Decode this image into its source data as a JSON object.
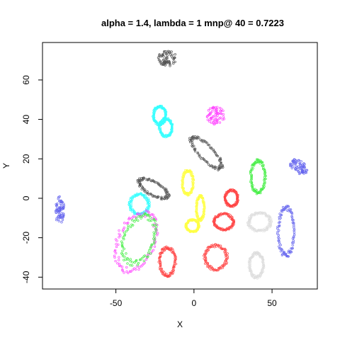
{
  "chart_data": {
    "type": "scatter",
    "title": "alpha = 1.4, lambda = 1 mnp@ 40 = 0.7223",
    "xlabel": "X",
    "ylabel": "Y",
    "xlim": [
      -97,
      79
    ],
    "ylim": [
      -46,
      79
    ],
    "xticks": [
      -50,
      0,
      50
    ],
    "yticks": [
      -40,
      -20,
      0,
      20,
      40,
      60
    ],
    "xtick_labels": [
      "-50",
      "0",
      "50"
    ],
    "ytick_labels": [
      "-40",
      "-20",
      "0",
      "20",
      "40",
      "60"
    ],
    "grid": false,
    "legend": "none",
    "marker": "open-circle",
    "clusters": [
      {
        "color": "#555555",
        "kind": "blob",
        "cx": -17,
        "cy": 71,
        "rx": 6,
        "ry": 4
      },
      {
        "color": "#ff44ff",
        "kind": "blob",
        "cx": 14,
        "cy": 42,
        "rx": 6,
        "ry": 4.5
      },
      {
        "color": "#33ffff",
        "kind": "ring",
        "cx": -22,
        "cy": 42,
        "rx": 4,
        "ry": 4.5
      },
      {
        "color": "#33ffff",
        "kind": "ring",
        "cx": -18,
        "cy": 36,
        "rx": 4,
        "ry": 4.5
      },
      {
        "color": "#555555",
        "kind": "ring",
        "cx": 8,
        "cy": 23,
        "rx": 12,
        "ry": 4,
        "rot": -38
      },
      {
        "color": "#44ee44",
        "kind": "ring",
        "cx": 41,
        "cy": 11,
        "rx": 4.5,
        "ry": 8
      },
      {
        "color": "#6666ee",
        "kind": "blob",
        "cx": 67,
        "cy": 16,
        "rx": 6,
        "ry": 3.5,
        "rot": -25
      },
      {
        "color": "#6666ee",
        "kind": "blob",
        "cx": -86,
        "cy": -6,
        "rx": 3,
        "ry": 7
      },
      {
        "color": "#ffff44",
        "kind": "ring",
        "cx": -4,
        "cy": 8,
        "rx": 3.5,
        "ry": 6
      },
      {
        "color": "#555555",
        "kind": "ring",
        "cx": -26,
        "cy": 5,
        "rx": 10,
        "ry": 3.5,
        "rot": -22
      },
      {
        "color": "#33ffff",
        "kind": "ring",
        "cx": -35,
        "cy": -3,
        "rx": 6,
        "ry": 5
      },
      {
        "color": "#ff44ff",
        "kind": "ring",
        "cx": -37,
        "cy": -22,
        "rx": 11,
        "ry": 16,
        "rot": -35
      },
      {
        "color": "#44ee44",
        "kind": "ring",
        "cx": -35,
        "cy": -21,
        "rx": 9,
        "ry": 13,
        "rot": -35
      },
      {
        "color": "#ffff44",
        "kind": "ring",
        "cx": 4,
        "cy": -5,
        "rx": 2.5,
        "ry": 6
      },
      {
        "color": "#ffff44",
        "kind": "ring",
        "cx": -1,
        "cy": -14,
        "rx": 4,
        "ry": 3
      },
      {
        "color": "#ff4444",
        "kind": "ring",
        "cx": 24,
        "cy": 0,
        "rx": 4,
        "ry": 4
      },
      {
        "color": "#ff4444",
        "kind": "ring",
        "cx": 19,
        "cy": -12,
        "rx": 6,
        "ry": 4
      },
      {
        "color": "#ff4444",
        "kind": "ring",
        "cx": -17,
        "cy": -32,
        "rx": 5,
        "ry": 7
      },
      {
        "color": "#ff4444",
        "kind": "ring",
        "cx": 14,
        "cy": -30,
        "rx": 7,
        "ry": 6
      },
      {
        "color": "#dddddd",
        "kind": "ring",
        "cx": 42,
        "cy": -12,
        "rx": 7,
        "ry": 4.5
      },
      {
        "color": "#dddddd",
        "kind": "ring",
        "cx": 40,
        "cy": -34,
        "rx": 4.5,
        "ry": 6
      },
      {
        "color": "#6666ee",
        "kind": "ring",
        "cx": 59,
        "cy": -17,
        "rx": 5,
        "ry": 12
      }
    ]
  }
}
